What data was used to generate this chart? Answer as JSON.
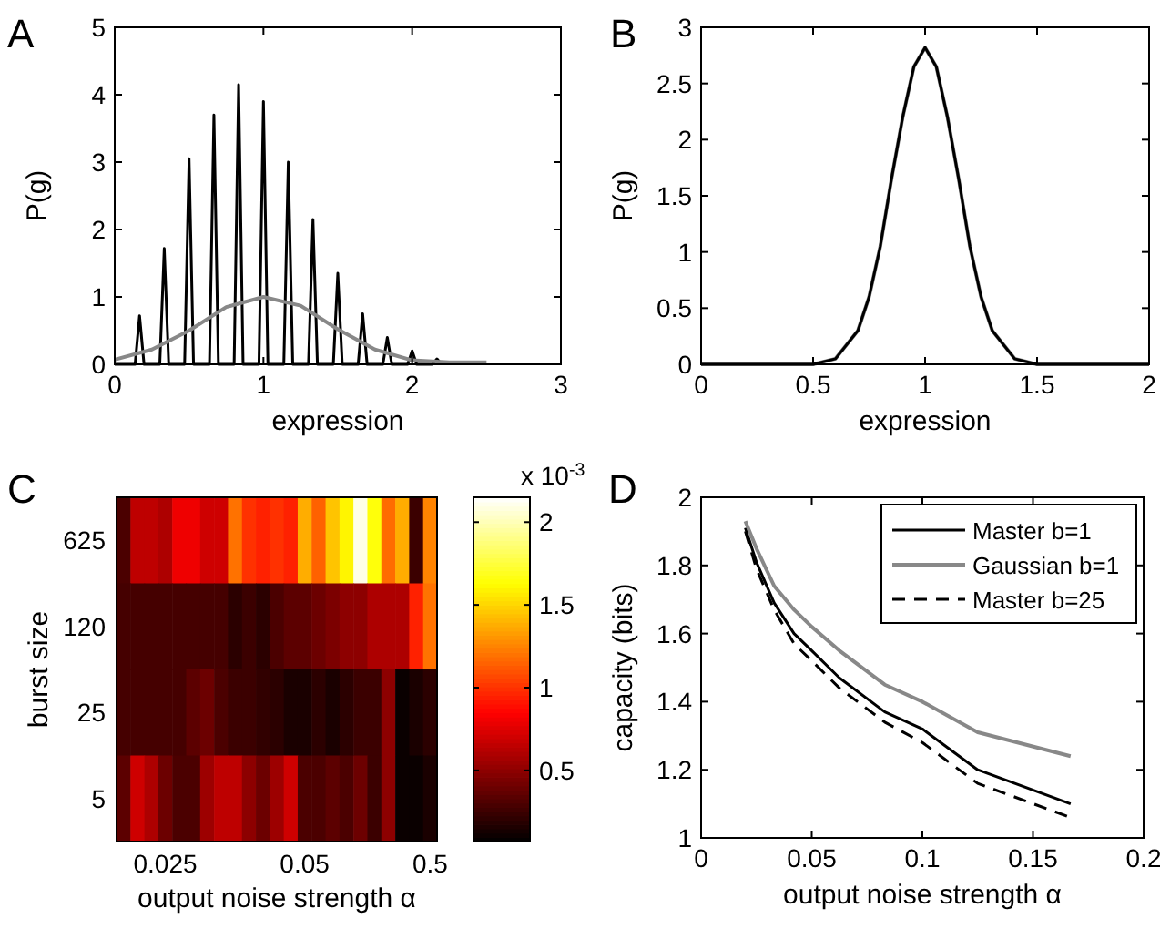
{
  "chart_data": [
    {
      "type": "line",
      "title": "A",
      "xlabel": "expression",
      "ylabel": "P(g)",
      "xlim": [
        0,
        3
      ],
      "xticks": [
        0,
        1,
        2,
        3
      ],
      "ylim": [
        0,
        5
      ],
      "yticks": [
        0,
        1,
        2,
        3,
        4,
        5
      ],
      "series": [
        {
          "color": "#000000",
          "line_style": "solid",
          "x": [
            0,
            0.137,
            0.167,
            0.197,
            0.303,
            0.333,
            0.363,
            0.47,
            0.5,
            0.53,
            0.637,
            0.667,
            0.697,
            0.803,
            0.833,
            0.863,
            0.97,
            1.0,
            1.03,
            1.137,
            1.167,
            1.197,
            1.303,
            1.333,
            1.363,
            1.47,
            1.5,
            1.53,
            1.637,
            1.667,
            1.697,
            1.803,
            1.833,
            1.863,
            1.97,
            2.0,
            2.03,
            2.137,
            2.167,
            2.197
          ],
          "values": [
            0,
            0,
            0.72,
            0,
            0,
            1.72,
            0,
            0,
            3.05,
            0,
            0,
            3.7,
            0,
            0,
            4.15,
            0,
            0,
            3.9,
            0,
            0,
            3.0,
            0,
            0,
            2.15,
            0,
            0,
            1.35,
            0,
            0,
            0.75,
            0,
            0,
            0.4,
            0,
            0,
            0.2,
            0,
            0,
            0.08,
            0
          ]
        },
        {
          "color": "#888888",
          "line_style": "solid",
          "x": [
            0,
            0.25,
            0.5,
            0.75,
            1,
            1.25,
            1.5,
            1.75,
            2,
            2.25,
            2.5
          ],
          "values": [
            0.07,
            0.22,
            0.5,
            0.85,
            1.0,
            0.87,
            0.52,
            0.22,
            0.06,
            0.03,
            0.03
          ]
        }
      ]
    },
    {
      "type": "line",
      "title": "B",
      "xlabel": "expression",
      "ylabel": "P(g)",
      "xlim": [
        0,
        2
      ],
      "xticks": [
        0,
        0.5,
        1,
        1.5,
        2
      ],
      "ylim": [
        0,
        3
      ],
      "yticks": [
        0,
        0.5,
        1,
        1.5,
        2,
        2.5,
        3
      ],
      "x": [
        0,
        0.5,
        0.6,
        0.7,
        0.75,
        0.8,
        0.85,
        0.9,
        0.95,
        1.0,
        1.05,
        1.1,
        1.15,
        1.2,
        1.25,
        1.3,
        1.4,
        1.5,
        2
      ],
      "series": [
        {
          "color": "#888888",
          "line_style": "solid",
          "values": [
            0,
            0,
            0.05,
            0.3,
            0.6,
            1.05,
            1.65,
            2.2,
            2.65,
            2.82,
            2.65,
            2.2,
            1.65,
            1.05,
            0.6,
            0.3,
            0.05,
            0,
            0
          ]
        },
        {
          "color": "#000000",
          "line_style": "solid",
          "values": [
            0,
            0,
            0.05,
            0.3,
            0.6,
            1.05,
            1.65,
            2.2,
            2.65,
            2.82,
            2.65,
            2.2,
            1.65,
            1.05,
            0.6,
            0.3,
            0.05,
            0,
            0
          ]
        }
      ]
    },
    {
      "type": "heatmap",
      "title": "C",
      "xlabel": "output noise strength α",
      "ylabel": "burst size",
      "clabel": "x 10$^{-3}$",
      "clim": [
        0.07,
        2.15
      ],
      "cticks": [
        0.5,
        1,
        1.5,
        2
      ],
      "categories": [
        null,
        null,
        null,
        "0.025",
        null,
        null,
        null,
        null,
        null,
        null,
        null,
        null,
        null,
        "0.05",
        null,
        null,
        null,
        null,
        null,
        null,
        null,
        null,
        "0.5"
      ],
      "y_categories": [
        "625",
        "120",
        "25",
        "5"
      ],
      "cells": [
        [
          0.3,
          0.65,
          0.65,
          0.6,
          0.8,
          0.8,
          0.7,
          0.7,
          1.2,
          1.0,
          0.95,
          1.0,
          0.95,
          1.38,
          1.15,
          1.45,
          1.6,
          2.1,
          1.65,
          1.18,
          1.38,
          0.25,
          1.25
        ],
        [
          0.28,
          0.28,
          0.28,
          0.28,
          0.28,
          0.28,
          0.28,
          0.28,
          0.2,
          0.25,
          0.2,
          0.3,
          0.35,
          0.35,
          0.4,
          0.45,
          0.5,
          0.5,
          0.6,
          0.6,
          0.6,
          0.95,
          1.2
        ],
        [
          0.28,
          0.28,
          0.28,
          0.28,
          0.28,
          0.35,
          0.4,
          0.3,
          0.25,
          0.25,
          0.22,
          0.2,
          0.15,
          0.15,
          0.2,
          0.15,
          0.2,
          0.25,
          0.25,
          0.5,
          0.1,
          0.15,
          0.2
        ],
        [
          0.35,
          0.7,
          0.6,
          0.4,
          0.3,
          0.3,
          0.55,
          0.65,
          0.65,
          0.5,
          0.4,
          0.55,
          0.7,
          0.3,
          0.3,
          0.35,
          0.3,
          0.4,
          0.25,
          0.5,
          0.1,
          0.1,
          0.15
        ]
      ]
    },
    {
      "type": "line",
      "title": "D",
      "xlabel": "output noise strength α",
      "ylabel": "capacity (bits)",
      "xlim": [
        0,
        0.2
      ],
      "xticks": [
        0,
        0.05,
        0.1,
        0.15,
        0.2
      ],
      "ylim": [
        1,
        2
      ],
      "yticks": [
        1,
        1.2,
        1.4,
        1.6,
        1.8,
        2
      ],
      "legend": "top right",
      "x": [
        0.02,
        0.025,
        0.033,
        0.042,
        0.05,
        0.0625,
        0.083,
        0.1,
        0.125,
        0.167
      ],
      "series": [
        {
          "name": "Master b=1",
          "color": "#000000",
          "line_style": "solid",
          "values": [
            1.91,
            1.81,
            1.69,
            1.6,
            1.55,
            1.47,
            1.37,
            1.32,
            1.2,
            1.1
          ]
        },
        {
          "name": "Gaussian b=1",
          "color": "#888888",
          "line_style": "solid",
          "values": [
            1.93,
            1.85,
            1.74,
            1.67,
            1.62,
            1.55,
            1.45,
            1.4,
            1.31,
            1.24
          ]
        },
        {
          "name": "Master b=25",
          "color": "#000000",
          "line_style": "dashed",
          "values": [
            1.9,
            1.79,
            1.67,
            1.57,
            1.52,
            1.44,
            1.34,
            1.28,
            1.16,
            1.06
          ]
        }
      ]
    }
  ]
}
